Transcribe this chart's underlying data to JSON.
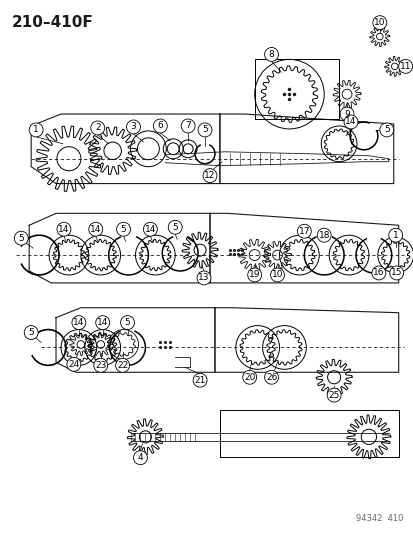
{
  "title": "210–410F",
  "footer": "94342  410",
  "bg_color": "#ffffff",
  "line_color": "#1a1a1a",
  "gray": "#888888",
  "light_gray": "#cccccc",
  "title_fontsize": 11,
  "footer_fontsize": 6,
  "label_fontsize": 6.5,
  "fig_width": 4.14,
  "fig_height": 5.33,
  "dpi": 100
}
